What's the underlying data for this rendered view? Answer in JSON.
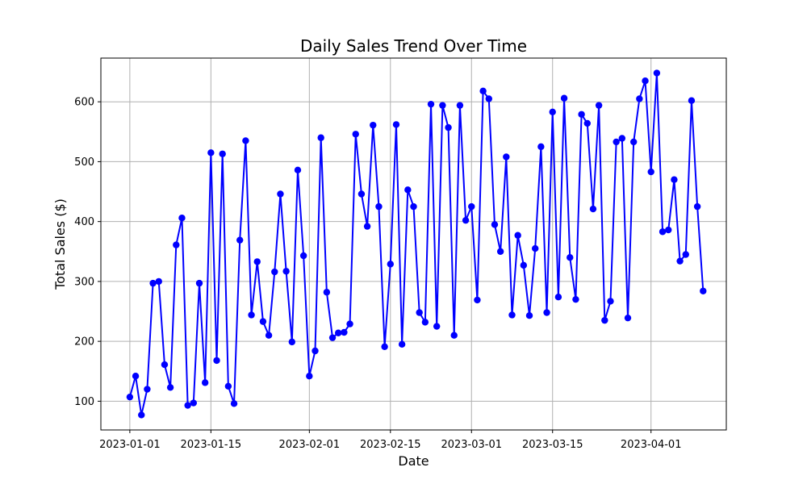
{
  "chart_data": {
    "type": "line",
    "title": "Daily Sales Trend Over Time",
    "xlabel": "Date",
    "ylabel": "Total Sales ($)",
    "x_start": "2023-01-01",
    "x_ticks": [
      "2023-01-01",
      "2023-01-15",
      "2023-02-01",
      "2023-02-15",
      "2023-03-01",
      "2023-03-15",
      "2023-04-01"
    ],
    "y_ticks": [
      100,
      200,
      300,
      400,
      500,
      600
    ],
    "xlim": [
      "2022-12-27",
      "2023-04-14"
    ],
    "ylim": [
      52,
      673
    ],
    "grid": true,
    "colors": {
      "line": "#0000ff",
      "marker": "#0000ff"
    },
    "series": [
      {
        "name": "Total Sales",
        "values": [
          107,
          142,
          77,
          120,
          297,
          300,
          161,
          123,
          361,
          406,
          93,
          97,
          297,
          131,
          515,
          168,
          513,
          125,
          96,
          369,
          535,
          244,
          333,
          233,
          210,
          316,
          446,
          317,
          199,
          486,
          343,
          142,
          184,
          540,
          282,
          206,
          214,
          215,
          229,
          546,
          446,
          392,
          561,
          425,
          191,
          329,
          562,
          195,
          453,
          425,
          248,
          232,
          596,
          225,
          594,
          557,
          210,
          594,
          402,
          425,
          269,
          618,
          605,
          395,
          350,
          508,
          244,
          377,
          327,
          243,
          355,
          525,
          248,
          583,
          274,
          606,
          340,
          270,
          579,
          564,
          421,
          594,
          235,
          267,
          533,
          539,
          239,
          533,
          605,
          635,
          483,
          648,
          383,
          386,
          470,
          334,
          345,
          602,
          425,
          284
        ]
      }
    ]
  }
}
